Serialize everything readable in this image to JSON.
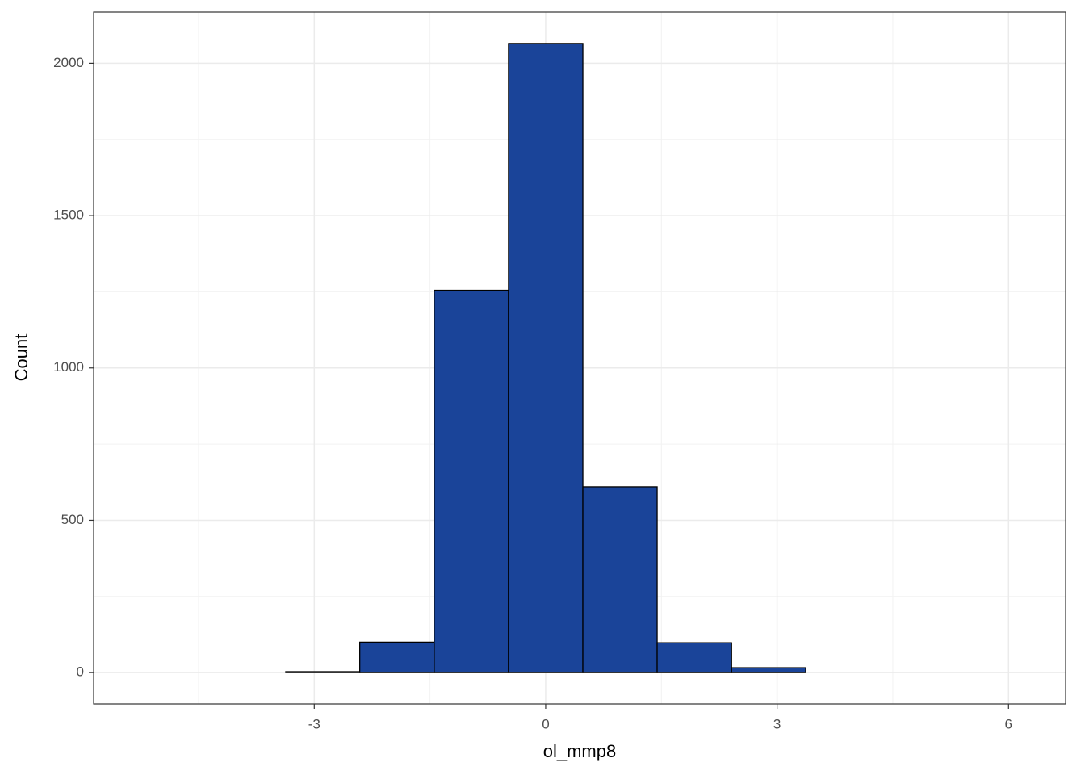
{
  "chart_data": {
    "type": "histogram",
    "x_label": "ol_mmp8",
    "y_label": "Count",
    "bins": [
      -5.29,
      -4.33,
      -3.37,
      -2.41,
      -1.445,
      -0.482,
      0.482,
      1.445,
      2.41,
      3.37,
      4.33,
      5.3,
      6.26
    ],
    "values": [
      0,
      0,
      3,
      100,
      1255,
      2065,
      610,
      98,
      16,
      0,
      0,
      0
    ],
    "color": "#1a4499",
    "xlim": [
      -5.86,
      6.74
    ],
    "xticks": [
      -3,
      0,
      3,
      6
    ],
    "ylim": [
      -103,
      2168
    ],
    "yticks": [
      0,
      500,
      1000,
      1500,
      2000
    ],
    "grid": true
  }
}
